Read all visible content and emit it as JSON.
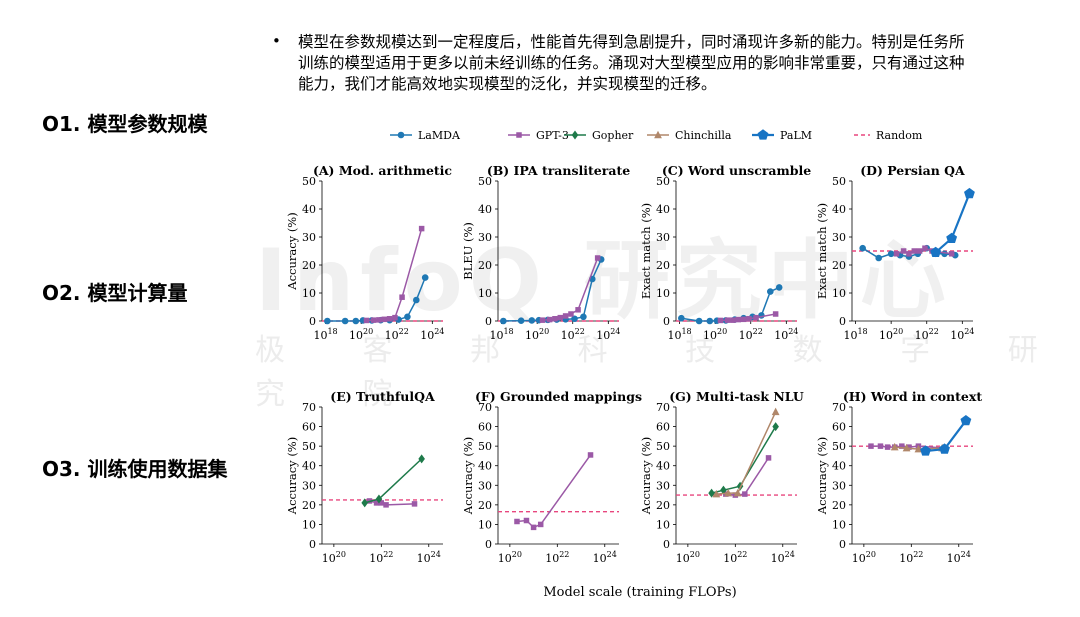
{
  "summary_text": "模型在参数规模达到一定程度后，性能首先得到急剧提升，同时涌现许多新的能力。特别是任务所训练的模型适用于更多以前未经训练的任务。涌现对大型模型应用的影响非常重要，只有通过这种能力，我们才能高效地实现模型的泛化，并实现模型的迁移。",
  "left_labels": [
    "O1. 模型参数规模",
    "O2. 模型计算量",
    "O3. 训练使用数据集"
  ],
  "watermark": {
    "main": "InfoQ 研究中心",
    "sub": "极 客 邦 科 技 数 字 研 究 院"
  },
  "colors": {
    "LaMDA": "#1f78b4",
    "GPT-3": "#9b59a6",
    "Gopher": "#1e7a4a",
    "Chinchilla": "#b0876a",
    "PaLM": "#1874c4",
    "Random": "#e8467e"
  },
  "chart_data": {
    "type": "line",
    "xlabel_common": "Model scale (training FLOPs)",
    "legend": [
      "LaMDA",
      "GPT-3",
      "Gopher",
      "Chinchilla",
      "PaLM",
      "Random"
    ],
    "legend_position": "top",
    "x_scale": "log",
    "panels": [
      {
        "title": "(A) Mod. arithmetic",
        "ylabel": "Accuracy (%)",
        "ylim": [
          0,
          50
        ],
        "yticks": [
          0,
          10,
          20,
          30,
          40,
          50
        ],
        "xlim_exp": [
          17.8,
          24.6
        ],
        "xticks_exp": [
          18,
          20,
          22,
          24
        ],
        "random": 0,
        "series": [
          {
            "name": "LaMDA",
            "x_exp": [
              18.1,
              19.1,
              19.7,
              20.1,
              20.6,
              21.1,
              21.6,
              22.1,
              22.6,
              23.1,
              23.6
            ],
            "y": [
              0,
              0,
              0,
              0.2,
              0.2,
              0.3,
              0.3,
              0.5,
              1.5,
              7.5,
              15.5
            ]
          },
          {
            "name": "GPT-3",
            "x_exp": [
              20.3,
              20.7,
              21.0,
              21.3,
              21.6,
              21.9,
              22.3,
              23.4
            ],
            "y": [
              0.2,
              0.3,
              0.4,
              0.6,
              0.8,
              1.2,
              8.5,
              33
            ]
          }
        ]
      },
      {
        "title": "(B) IPA transliterate",
        "ylabel": "BLEU (%)",
        "ylim": [
          0,
          50
        ],
        "yticks": [
          0,
          10,
          20,
          30,
          40,
          50
        ],
        "xlim_exp": [
          17.8,
          24.6
        ],
        "xticks_exp": [
          18,
          20,
          22,
          24
        ],
        "random": 0,
        "series": [
          {
            "name": "LaMDA",
            "x_exp": [
              18.1,
              19.1,
              19.7,
              20.1,
              20.6,
              21.1,
              21.6,
              22.1,
              22.6,
              23.1,
              23.6
            ],
            "y": [
              0,
              0.1,
              0.2,
              0.3,
              0.4,
              0.5,
              0.6,
              0.8,
              1.5,
              15,
              22
            ]
          },
          {
            "name": "GPT-3",
            "x_exp": [
              20.3,
              20.7,
              21.0,
              21.3,
              21.6,
              21.9,
              22.3,
              23.4
            ],
            "y": [
              0.3,
              0.5,
              0.8,
              1.2,
              1.8,
              2.5,
              4,
              22.5
            ]
          }
        ]
      },
      {
        "title": "(C) Word unscramble",
        "ylabel": "Exact match (%)",
        "ylim": [
          0,
          50
        ],
        "yticks": [
          0,
          10,
          20,
          30,
          40,
          50
        ],
        "xlim_exp": [
          17.8,
          24.6
        ],
        "xticks_exp": [
          18,
          20,
          22,
          24
        ],
        "random": 0,
        "series": [
          {
            "name": "LaMDA",
            "x_exp": [
              18.1,
              19.1,
              19.7,
              20.1,
              20.6,
              21.1,
              21.6,
              22.1,
              22.6,
              23.1,
              23.6
            ],
            "y": [
              1,
              0,
              0,
              0.1,
              0.2,
              0.5,
              1,
              1.5,
              2,
              10.5,
              12
            ]
          },
          {
            "name": "GPT-3",
            "x_exp": [
              20.3,
              20.7,
              21.0,
              21.3,
              21.6,
              21.9,
              22.3,
              23.4
            ],
            "y": [
              0.2,
              0.3,
              0.3,
              0.5,
              0.6,
              0.8,
              1.2,
              2.5
            ]
          }
        ]
      },
      {
        "title": "(D) Persian QA",
        "ylabel": "Exact match (%)",
        "ylim": [
          0,
          50
        ],
        "yticks": [
          0,
          10,
          20,
          30,
          40,
          50
        ],
        "xlim_exp": [
          17.8,
          24.6
        ],
        "xticks_exp": [
          18,
          20,
          22,
          24
        ],
        "random": 25,
        "series": [
          {
            "name": "LaMDA",
            "x_exp": [
              18.4,
              19.3,
              20.0,
              20.5,
              21.0,
              21.5,
              22.0,
              22.5,
              23.0,
              23.6
            ],
            "y": [
              26,
              22.5,
              24,
              23.5,
              23,
              24,
              26,
              24,
              24,
              23.5
            ]
          },
          {
            "name": "GPT-3",
            "x_exp": [
              20.3,
              20.7,
              21.0,
              21.3,
              21.6,
              21.9,
              22.3,
              23.4
            ],
            "y": [
              24,
              25,
              24,
              25,
              25,
              26,
              25,
              24
            ]
          },
          {
            "name": "PaLM",
            "x_exp": [
              22.5,
              23.4,
              24.4
            ],
            "y": [
              24.5,
              29.5,
              45.5
            ]
          }
        ]
      },
      {
        "title": "(E) TruthfulQA",
        "ylabel": "Accuracy (%)",
        "ylim": [
          0,
          70
        ],
        "yticks": [
          0,
          10,
          20,
          30,
          40,
          50,
          60,
          70
        ],
        "xlim_exp": [
          19.5,
          24.6
        ],
        "xticks_exp": [
          20,
          22,
          24
        ],
        "random": 22.5,
        "series": [
          {
            "name": "GPT-3",
            "x_exp": [
              21.5,
              21.8,
              22.0,
              22.2,
              23.4
            ],
            "y": [
              22,
              21,
              21,
              20,
              20.5
            ]
          },
          {
            "name": "Gopher",
            "x_exp": [
              21.3,
              21.9,
              23.7
            ],
            "y": [
              21,
              23,
              43.5
            ]
          }
        ]
      },
      {
        "title": "(F) Grounded mappings",
        "ylabel": "Accuracy (%)",
        "ylim": [
          0,
          70
        ],
        "yticks": [
          0,
          10,
          20,
          30,
          40,
          50,
          60,
          70
        ],
        "xlim_exp": [
          19.5,
          24.6
        ],
        "xticks_exp": [
          20,
          22,
          24
        ],
        "random": 16.5,
        "series": [
          {
            "name": "GPT-3",
            "x_exp": [
              20.3,
              20.7,
              21.0,
              21.3,
              23.4
            ],
            "y": [
              11.5,
              12,
              8.5,
              10,
              45.5
            ]
          }
        ]
      },
      {
        "title": "(G) Multi-task NLU",
        "ylabel": "Accuracy (%)",
        "ylim": [
          0,
          70
        ],
        "yticks": [
          0,
          10,
          20,
          30,
          40,
          50,
          60,
          70
        ],
        "xlim_exp": [
          19.5,
          24.6
        ],
        "xticks_exp": [
          20,
          22,
          24
        ],
        "random": 25,
        "series": [
          {
            "name": "GPT-3",
            "x_exp": [
              21.6,
              22.0,
              22.4,
              23.4
            ],
            "y": [
              25.5,
              25,
              25.5,
              44
            ]
          },
          {
            "name": "Gopher",
            "x_exp": [
              21.0,
              21.5,
              22.2,
              23.7
            ],
            "y": [
              26,
              27.5,
              29.5,
              60
            ]
          },
          {
            "name": "Chinchilla",
            "x_exp": [
              21.2,
              21.7,
              22.1,
              23.7
            ],
            "y": [
              25.5,
              26,
              26,
              67.5
            ]
          }
        ]
      },
      {
        "title": "(H) Word in context",
        "ylabel": "Accuracy (%)",
        "ylim": [
          0,
          70
        ],
        "yticks": [
          0,
          10,
          20,
          30,
          40,
          50,
          60,
          70
        ],
        "xlim_exp": [
          19.5,
          24.6
        ],
        "xticks_exp": [
          20,
          22,
          24
        ],
        "random": 50,
        "series": [
          {
            "name": "GPT-3",
            "x_exp": [
              20.3,
              20.7,
              21.0,
              21.3,
              21.6,
              21.9,
              22.3,
              23.4
            ],
            "y": [
              50,
              50,
              49.5,
              49.5,
              50,
              49.5,
              50,
              49
            ]
          },
          {
            "name": "Chinchilla",
            "x_exp": [
              21.3,
              21.8,
              22.3,
              23.3
            ],
            "y": [
              49.5,
              49,
              48.5,
              49
            ]
          },
          {
            "name": "PaLM",
            "x_exp": [
              22.6,
              23.4,
              24.3
            ],
            "y": [
              47.5,
              48.5,
              63
            ]
          }
        ]
      }
    ]
  }
}
